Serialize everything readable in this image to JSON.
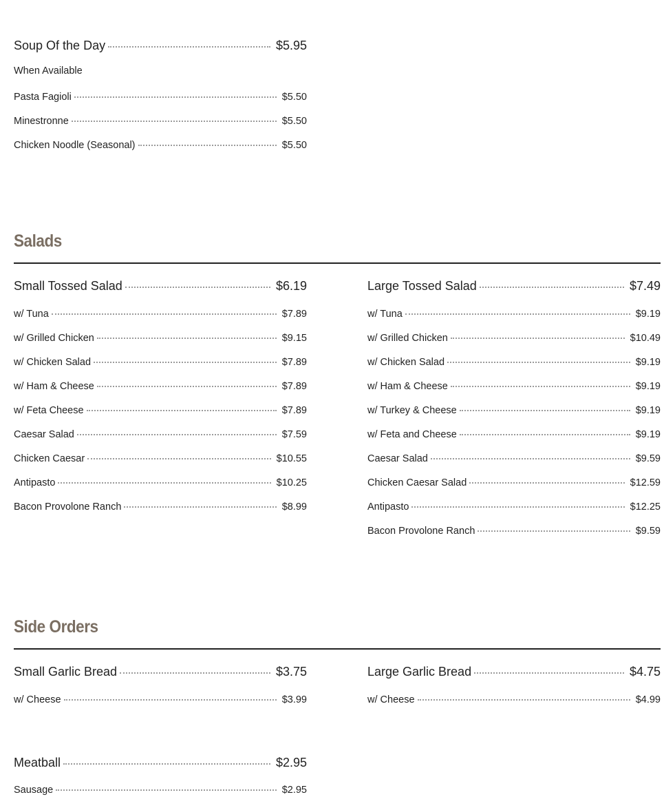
{
  "soup": {
    "main": {
      "name": "Soup Of the Day",
      "price": "$5.95"
    },
    "note": "When Available",
    "items": [
      {
        "name": "Pasta Fagioli",
        "price": "$5.50"
      },
      {
        "name": "Minestronne",
        "price": "$5.50"
      },
      {
        "name": "Chicken Noodle (Seasonal)",
        "price": "$5.50"
      }
    ]
  },
  "salads": {
    "title": "Salads",
    "left": {
      "main": {
        "name": "Small Tossed Salad",
        "price": "$6.19"
      },
      "items": [
        {
          "name": "w/ Tuna",
          "price": "$7.89"
        },
        {
          "name": "w/ Grilled Chicken",
          "price": "$9.15"
        },
        {
          "name": "w/ Chicken Salad",
          "price": "$7.89"
        },
        {
          "name": "w/ Ham & Cheese",
          "price": "$7.89"
        },
        {
          "name": "w/ Feta Cheese",
          "price": "$7.89"
        },
        {
          "name": "Caesar Salad",
          "price": "$7.59"
        },
        {
          "name": "Chicken Caesar",
          "price": "$10.55"
        },
        {
          "name": "Antipasto",
          "price": "$10.25"
        },
        {
          "name": "Bacon Provolone Ranch",
          "price": "$8.99"
        }
      ]
    },
    "right": {
      "main": {
        "name": "Large Tossed Salad",
        "price": "$7.49"
      },
      "items": [
        {
          "name": "w/ Tuna",
          "price": "$9.19"
        },
        {
          "name": "w/ Grilled Chicken",
          "price": "$10.49"
        },
        {
          "name": "w/ Chicken Salad",
          "price": "$9.19"
        },
        {
          "name": "w/ Ham & Cheese",
          "price": "$9.19"
        },
        {
          "name": "w/ Turkey & Cheese",
          "price": "$9.19"
        },
        {
          "name": "w/ Feta and Cheese",
          "price": "$9.19"
        },
        {
          "name": "Caesar Salad",
          "price": "$9.59"
        },
        {
          "name": "Chicken Caesar Salad",
          "price": "$12.59"
        },
        {
          "name": "Antipasto",
          "price": "$12.25"
        },
        {
          "name": "Bacon Provolone Ranch",
          "price": "$9.59"
        }
      ]
    }
  },
  "sides": {
    "title": "Side Orders",
    "left": {
      "main": {
        "name": "Small Garlic Bread",
        "price": "$3.75"
      },
      "items": [
        {
          "name": "w/ Cheese",
          "price": "$3.99"
        }
      ]
    },
    "right": {
      "main": {
        "name": "Large Garlic Bread",
        "price": "$4.75"
      },
      "items": [
        {
          "name": "w/ Cheese",
          "price": "$4.99"
        }
      ]
    },
    "meatball": {
      "main": {
        "name": "Meatball",
        "price": "$2.95"
      },
      "items": [
        {
          "name": "Sausage",
          "price": "$2.95"
        }
      ]
    }
  }
}
